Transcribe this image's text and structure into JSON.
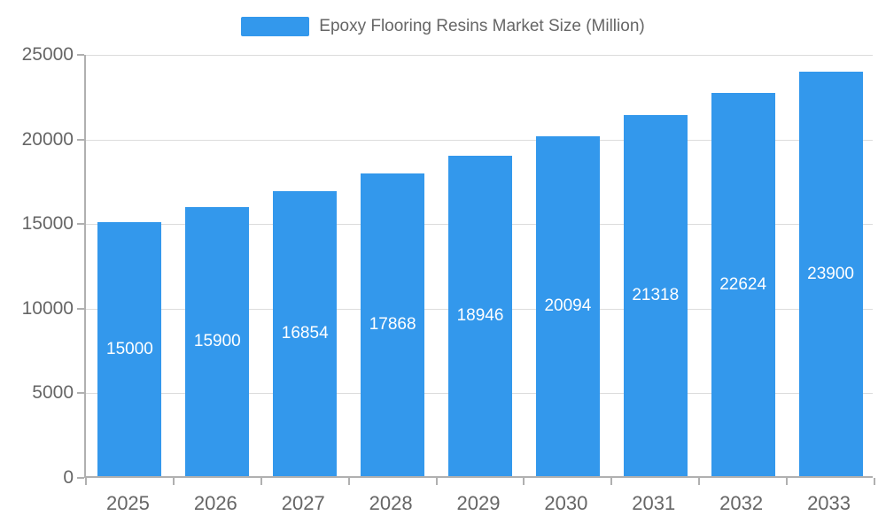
{
  "legend": {
    "label": "Epoxy Flooring Resins Market Size (Million)"
  },
  "colors": {
    "bar": "#3398EC",
    "value_label": "#ffffff",
    "axis_text": "#666666",
    "axis_line": "#b0b0b0",
    "gridline": "#dcdcdc"
  },
  "chart_data": {
    "type": "bar",
    "title": "Epoxy Flooring Resins Market Size (Million)",
    "categories": [
      "2025",
      "2026",
      "2027",
      "2028",
      "2029",
      "2030",
      "2031",
      "2032",
      "2033"
    ],
    "values": [
      15000,
      15900,
      16854,
      17868,
      18946,
      20094,
      21318,
      22624,
      23900
    ],
    "xlabel": "",
    "ylabel": "",
    "ylim": [
      0,
      25000
    ],
    "yticks": [
      0,
      5000,
      10000,
      15000,
      20000,
      25000
    ],
    "grid": true,
    "legend_position": "top",
    "value_labels": "inside-middle"
  }
}
